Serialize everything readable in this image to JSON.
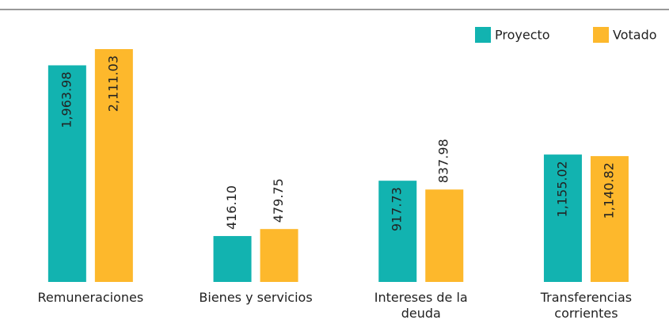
{
  "chart_data": {
    "type": "bar",
    "categories": [
      "Remuneraciones",
      "Bienes y servicios",
      "Intereses de la\ndeuda",
      "Transferencias\ncorrientes"
    ],
    "series": [
      {
        "name": "Proyecto",
        "color": "#12b3b0",
        "values": [
          1963.98,
          416.1,
          917.73,
          1155.02
        ],
        "value_labels": [
          "1,963.98",
          "416.10",
          "917.73",
          "1,155.02"
        ]
      },
      {
        "name": "Votado",
        "color": "#fdb82c",
        "values": [
          2111.03,
          479.75,
          837.98,
          1140.82
        ],
        "value_labels": [
          "2,111.03",
          "479.75",
          "837.98",
          "1,140.82"
        ]
      }
    ],
    "legend": "top-right"
  }
}
